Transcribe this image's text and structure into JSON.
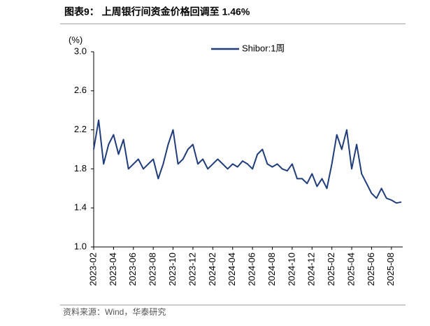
{
  "chart_data": {
    "type": "line",
    "title": "图表9： 上周银行间资金价格回调至 1.46%",
    "y_unit": "(%)",
    "source": "资料来源：Wind，华泰研究",
    "categories": [
      "2023-02",
      null,
      null,
      null,
      "2023-04",
      null,
      null,
      null,
      "2023-06",
      null,
      null,
      null,
      "2023-08",
      null,
      null,
      null,
      "2023-10",
      null,
      null,
      null,
      "2023-12",
      null,
      null,
      null,
      "2024-02",
      null,
      null,
      null,
      "2024-04",
      null,
      null,
      null,
      "2024-06",
      null,
      null,
      null,
      "2024-08",
      null,
      null,
      null,
      "2024-10",
      null,
      null,
      null,
      "2024-12",
      null,
      null,
      null,
      "2025-02",
      null,
      null,
      null,
      "2025-04",
      null,
      null,
      null,
      "2025-06",
      null,
      null,
      null,
      "2025-08",
      null,
      null
    ],
    "series": [
      {
        "name": "Shibor:1周",
        "color": "#1f3d7a",
        "values": [
          2.0,
          2.3,
          1.85,
          2.05,
          2.15,
          1.95,
          2.1,
          1.8,
          1.85,
          1.9,
          1.8,
          1.85,
          1.9,
          1.7,
          1.85,
          2.05,
          2.2,
          1.85,
          1.9,
          2.0,
          2.05,
          1.85,
          1.9,
          1.8,
          1.85,
          1.9,
          1.85,
          1.8,
          1.85,
          1.82,
          1.88,
          1.85,
          1.8,
          1.95,
          2.0,
          1.85,
          1.82,
          1.85,
          1.8,
          1.78,
          1.85,
          1.7,
          1.7,
          1.65,
          1.75,
          1.62,
          1.7,
          1.6,
          1.85,
          2.15,
          2.0,
          2.2,
          1.8,
          2.05,
          1.75,
          1.65,
          1.55,
          1.5,
          1.6,
          1.5,
          1.48,
          1.45,
          1.46
        ]
      }
    ],
    "ylim": [
      1,
      3
    ],
    "yticks": [
      {
        "value": 1,
        "label": "1.0"
      },
      1.4,
      1.8,
      2.2,
      2.6,
      {
        "value": 3,
        "label": "3.0"
      }
    ],
    "legend": "top"
  }
}
